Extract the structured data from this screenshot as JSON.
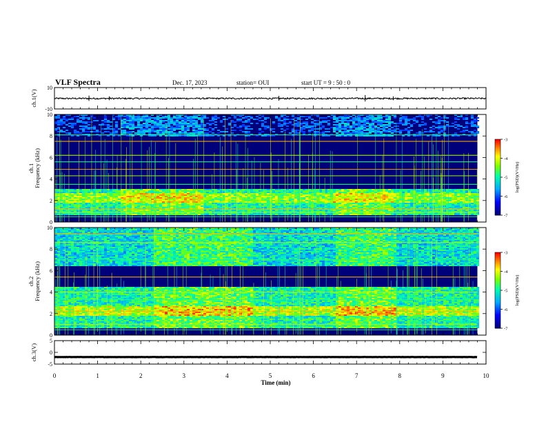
{
  "header": {
    "title": "VLF Spectra",
    "date": "Dec. 17, 2023",
    "station": "station= OUI",
    "start_ut": "start UT =  9 : 50 : 0"
  },
  "colors": {
    "spectrogram_background": "#00007a",
    "colormap": [
      "#000000",
      "#00008b",
      "#0000ff",
      "#00c8ff",
      "#00ff80",
      "#80ff00",
      "#ffff00",
      "#ff8000",
      "#ff0000",
      "#ffffff"
    ]
  },
  "chart_data": [
    {
      "type": "line",
      "panel": "ch1 waveform",
      "ylabel": "ch.1(V)",
      "ylim": [
        -10,
        10
      ],
      "y_ticks": [
        "10",
        "-10"
      ],
      "xlim": [
        0,
        10
      ],
      "series": [
        {
          "x": [
            0,
            10
          ],
          "y": [
            -0.2,
            -0.2
          ]
        }
      ]
    },
    {
      "type": "heatmap",
      "panel": "ch1 spectrogram",
      "ylabel": "ch.1\nFrequency  (kHz)",
      "ylim": [
        0,
        10
      ],
      "y_ticks": [
        "0",
        "2",
        "4",
        "6",
        "8",
        "10"
      ],
      "xlim": [
        0,
        9.8
      ],
      "colorbar": {
        "label": "log(PSD)(V²/Hz)",
        "range": [
          -7,
          -3
        ],
        "ticks": [
          "-3",
          "-4",
          "-5",
          "-6",
          "-7"
        ]
      },
      "bands_khz": [
        {
          "from": 0.7,
          "to": 3.2,
          "intensity": 0.5
        },
        {
          "from": 1.8,
          "to": 2.7,
          "intensity": 0.65
        },
        {
          "from": 8.0,
          "to": 10.0,
          "intensity": 0.2
        }
      ],
      "line_freqs_khz": [
        0.5,
        0.9,
        1.2,
        3.5,
        4.3,
        4.9,
        5.6,
        6.2,
        7.5,
        8.1
      ]
    },
    {
      "type": "heatmap",
      "panel": "ch2 spectrogram",
      "ylabel": "ch.2\nFrequency  (kHz)",
      "ylim": [
        0,
        10
      ],
      "y_ticks": [
        "0",
        "2",
        "4",
        "6",
        "8",
        "10"
      ],
      "xlim": [
        0,
        9.8
      ],
      "colorbar": {
        "label": "log(PSD)(V²/Hz)",
        "range": [
          -7,
          -3
        ],
        "ticks": [
          "-3",
          "-4",
          "-5",
          "-6",
          "-7"
        ]
      },
      "bands_khz": [
        {
          "from": 0.7,
          "to": 4.5,
          "intensity": 0.5
        },
        {
          "from": 1.8,
          "to": 2.8,
          "intensity": 0.7
        },
        {
          "from": 6.5,
          "to": 10.0,
          "intensity": 0.45
        }
      ],
      "line_freqs_khz": [
        0.5,
        1.0,
        2.2,
        3.3,
        4.0,
        5.4,
        7.0,
        8.6,
        9.4
      ]
    },
    {
      "type": "line",
      "panel": "ch3 waveform",
      "ylabel": "ch.3(V)",
      "ylim": [
        -5,
        5
      ],
      "y_ticks": [
        "5",
        "0",
        "-5"
      ],
      "xlim": [
        0,
        10
      ],
      "xlabel": "Time  (min)",
      "x_ticks": [
        "0",
        "1",
        "2",
        "3",
        "4",
        "5",
        "6",
        "7",
        "8",
        "9",
        "10"
      ],
      "series": [
        {
          "x": [
            0,
            9.8
          ],
          "y": [
            -2.0,
            -2.0
          ]
        }
      ]
    }
  ]
}
